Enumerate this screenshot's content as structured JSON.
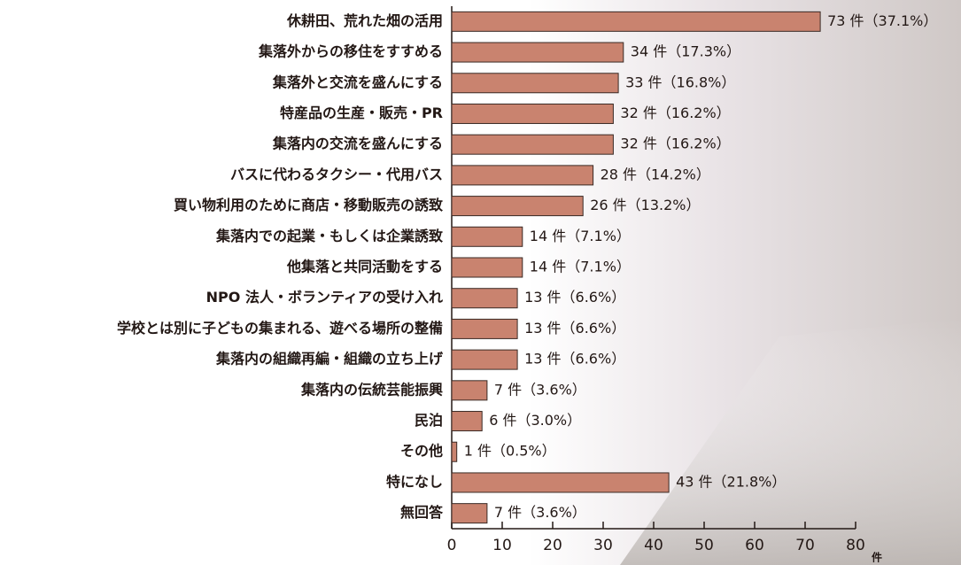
{
  "chart_data": {
    "type": "bar",
    "orientation": "horizontal",
    "categories": [
      "休耕田、荒れた畑の活用",
      "集落外からの移住をすすめる",
      "集落外と交流を盛んにする",
      "特産品の生産・販売・PR",
      "集落内の交流を盛んにする",
      "バスに代わるタクシー・代用バス",
      "買い物利用のために商店・移動販売の誘致",
      "集落内での起業・もしくは企業誘致",
      "他集落と共同活動をする",
      "NPO 法人・ボランティアの受け入れ",
      "学校とは別に子どもの集まれる、遊べる場所の整備",
      "集落内の組織再編・組織の立ち上げ",
      "集落内の伝統芸能振興",
      "民泊",
      "その他",
      "特になし",
      "無回答"
    ],
    "values": [
      73,
      34,
      33,
      32,
      32,
      28,
      26,
      14,
      14,
      13,
      13,
      13,
      7,
      6,
      1,
      43,
      7
    ],
    "value_labels": [
      "73 件（37.1%）",
      "34 件（17.3%）",
      "33 件（16.8%）",
      "32 件（16.2%）",
      "32 件（16.2%）",
      "28 件（14.2%）",
      "26 件（13.2%）",
      "14 件（7.1%）",
      "14 件（7.1%）",
      "13 件（6.6%）",
      "13 件（6.6%）",
      "13 件（6.6%）",
      "7 件（3.6%）",
      "6 件（3.0%）",
      "1 件（0.5%）",
      "43 件（21.8%）",
      "7 件（3.6%）"
    ],
    "color": "#c9836f",
    "xlim": [
      0,
      80
    ],
    "xticks": [
      0,
      10,
      20,
      30,
      40,
      50,
      60,
      70,
      80
    ],
    "x_label": "件"
  }
}
